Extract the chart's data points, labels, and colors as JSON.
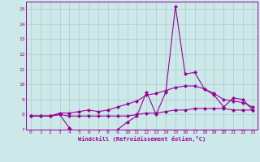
{
  "xlabel": "Windchill (Refroidissement éolien,°C)",
  "x_values": [
    0,
    1,
    2,
    3,
    4,
    5,
    6,
    7,
    8,
    9,
    10,
    11,
    12,
    13,
    14,
    15,
    16,
    17,
    18,
    19,
    20,
    21,
    22,
    23
  ],
  "line1": [
    7.9,
    7.9,
    7.9,
    8.0,
    7.1,
    6.7,
    6.8,
    6.8,
    6.6,
    7.0,
    7.5,
    7.9,
    9.5,
    8.0,
    9.5,
    15.2,
    10.7,
    10.8,
    9.7,
    9.3,
    8.5,
    9.1,
    9.0,
    8.3
  ],
  "line2": [
    7.9,
    7.9,
    7.9,
    8.1,
    8.1,
    8.2,
    8.3,
    8.2,
    8.3,
    8.5,
    8.7,
    8.9,
    9.3,
    9.4,
    9.6,
    9.8,
    9.9,
    9.9,
    9.7,
    9.4,
    9.0,
    8.9,
    8.8,
    8.5
  ],
  "line3": [
    7.9,
    7.9,
    7.9,
    8.0,
    7.9,
    7.9,
    7.9,
    7.9,
    7.9,
    7.9,
    7.9,
    8.0,
    8.1,
    8.1,
    8.2,
    8.3,
    8.3,
    8.4,
    8.4,
    8.4,
    8.4,
    8.3,
    8.3,
    8.3
  ],
  "line_color": "#990099",
  "bg_color": "#cce8e8",
  "grid_color": "#aacccc",
  "ylim": [
    7,
    15.5
  ],
  "xlim": [
    -0.5,
    23.5
  ],
  "yticks": [
    7,
    8,
    9,
    10,
    11,
    12,
    13,
    14,
    15
  ],
  "xticks": [
    0,
    1,
    2,
    3,
    4,
    5,
    6,
    7,
    8,
    9,
    10,
    11,
    12,
    13,
    14,
    15,
    16,
    17,
    18,
    19,
    20,
    21,
    22,
    23
  ],
  "marker": "D",
  "markersize": 2,
  "linewidth": 0.8
}
